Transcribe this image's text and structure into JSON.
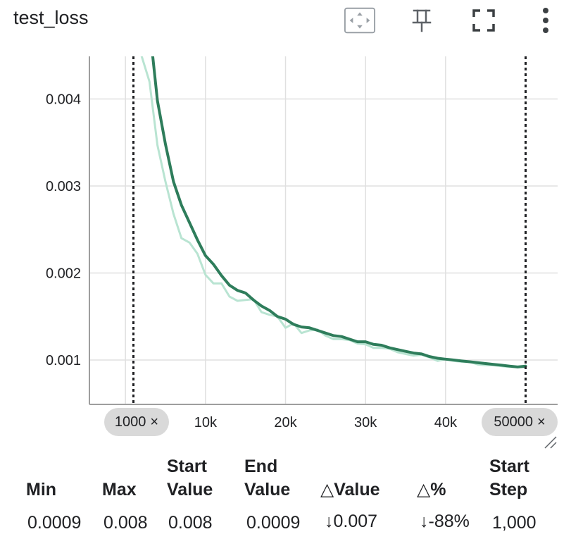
{
  "card": {
    "title": "test_loss",
    "tools": {
      "fit_icon": "fit-domain-icon",
      "pin_icon": "pin-icon",
      "fullscreen_icon": "fullscreen-icon",
      "menu_icon": "more-vert-icon"
    }
  },
  "chart_data": {
    "type": "line",
    "title": "test_loss",
    "xlabel": "",
    "ylabel": "",
    "xlim": [
      -4500,
      54000
    ],
    "ylim": [
      0.00049,
      0.00449
    ],
    "x_ticks": [
      "10k",
      "20k",
      "30k",
      "40k"
    ],
    "x_tick_values": [
      10000,
      20000,
      30000,
      40000
    ],
    "y_ticks": [
      "0.001",
      "0.002",
      "0.003",
      "0.004"
    ],
    "y_tick_values": [
      0.001,
      0.002,
      0.003,
      0.004
    ],
    "grid": true,
    "range_markers": [
      1000,
      50000
    ],
    "series": [
      {
        "color": "#b9e4d2",
        "x": [
          2000,
          3000,
          4000,
          5000,
          6000,
          7000,
          8000,
          9000,
          10000,
          11000,
          12000,
          13000,
          14000,
          15000,
          16000,
          17000,
          18000,
          19000,
          20000,
          21000,
          22000,
          23000,
          24000,
          25000,
          26000,
          27000,
          28000,
          29000,
          30000,
          31000,
          32000,
          33000,
          34000,
          35000,
          36000,
          37000,
          38000,
          39000,
          40000,
          41000,
          42000,
          43000,
          44000,
          45000,
          46000,
          47000,
          48000,
          49000,
          50000
        ],
        "y": [
          0.0045,
          0.0042,
          0.00347,
          0.00305,
          0.00268,
          0.0024,
          0.00235,
          0.00222,
          0.00198,
          0.00188,
          0.00188,
          0.00173,
          0.00168,
          0.00169,
          0.0017,
          0.00155,
          0.00152,
          0.0015,
          0.00137,
          0.00142,
          0.00131,
          0.00134,
          0.00135,
          0.00128,
          0.00124,
          0.00124,
          0.00123,
          0.00119,
          0.00118,
          0.00114,
          0.00114,
          0.00113,
          0.00109,
          0.00107,
          0.00105,
          0.00106,
          0.00103,
          0.00099,
          0.00101,
          0.00099,
          0.00098,
          0.00098,
          0.00095,
          0.00094,
          0.00094,
          0.00093,
          0.00092,
          0.00092,
          0.00092
        ]
      },
      {
        "color": "#2e7d5b",
        "x": [
          3400,
          4000,
          5000,
          6000,
          7000,
          8000,
          9000,
          10000,
          11000,
          12000,
          13000,
          14000,
          15000,
          16000,
          17000,
          18000,
          19000,
          20000,
          21000,
          22000,
          23000,
          24000,
          25000,
          26000,
          27000,
          28000,
          29000,
          30000,
          31000,
          32000,
          33000,
          34000,
          35000,
          36000,
          37000,
          38000,
          39000,
          40000,
          41000,
          42000,
          43000,
          44000,
          45000,
          46000,
          47000,
          48000,
          49000,
          50000
        ],
        "y": [
          0.0045,
          0.00398,
          0.00348,
          0.00305,
          0.00278,
          0.00258,
          0.00238,
          0.0022,
          0.0021,
          0.00197,
          0.00186,
          0.0018,
          0.00177,
          0.00169,
          0.00162,
          0.00157,
          0.0015,
          0.00147,
          0.00141,
          0.00138,
          0.00137,
          0.00134,
          0.00131,
          0.00128,
          0.00127,
          0.00124,
          0.00121,
          0.00121,
          0.00118,
          0.00117,
          0.00114,
          0.00112,
          0.0011,
          0.00108,
          0.00107,
          0.00104,
          0.00102,
          0.00101,
          0.001,
          0.00099,
          0.00098,
          0.00097,
          0.00096,
          0.00095,
          0.00094,
          0.00093,
          0.00092,
          0.00093
        ]
      }
    ],
    "range_labels": {
      "start": "1000",
      "end": "50000",
      "close": "×"
    }
  },
  "stats": {
    "headers": {
      "min": "Min",
      "max": "Max",
      "start_value_1": "Start",
      "start_value_2": "Value",
      "end_value_1": "End",
      "end_value_2": "Value",
      "delta_value": "△Value",
      "delta_pct": "△%",
      "start_step_1": "Start",
      "start_step_2": "Step"
    },
    "values": {
      "min": "0.0009",
      "max": "0.008",
      "start_value": "0.008",
      "end_value": "0.0009",
      "delta_value": "↓0.007",
      "delta_pct": "↓-88%",
      "start_step": "1,000"
    }
  }
}
